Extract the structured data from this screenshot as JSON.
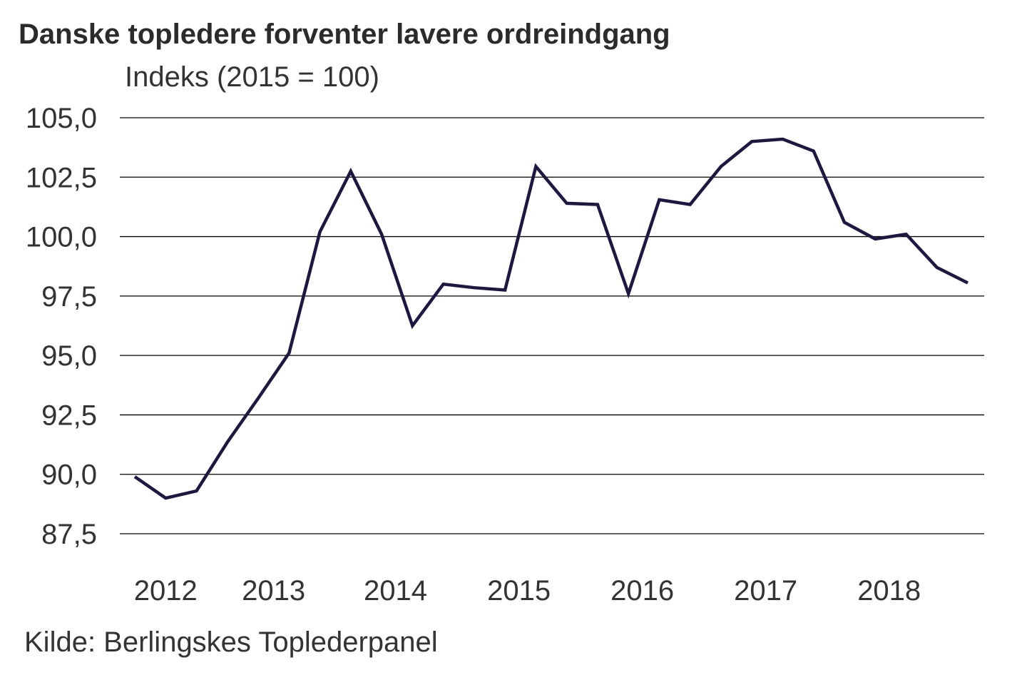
{
  "chart_data": {
    "type": "line",
    "title": "Danske topledere forventer lavere ordreindgang",
    "ylabel": "Indeks (2015 = 100)",
    "source": "Kilde: Berlingskes Toplederpanel",
    "ylim": [
      87.5,
      105.0
    ],
    "yticks": [
      "87,5",
      "90,0",
      "92,5",
      "95,0",
      "97,5",
      "100,0",
      "102,5",
      "105,0"
    ],
    "ytick_values": [
      87.5,
      90,
      92.5,
      95,
      97.5,
      100,
      102.5,
      105
    ],
    "grid": true,
    "xticks": [
      {
        "label": "2012",
        "pos": 1
      },
      {
        "label": "2013",
        "pos": 4.5
      },
      {
        "label": "2014",
        "pos": 8.45
      },
      {
        "label": "2015",
        "pos": 12.45
      },
      {
        "label": "2016",
        "pos": 16.45
      },
      {
        "label": "2017",
        "pos": 20.45
      },
      {
        "label": "2018",
        "pos": 24.45
      }
    ],
    "series": [
      {
        "name": "Indeks",
        "color": "#1c1840",
        "values": [
          89.9,
          89.0,
          89.3,
          91.35,
          93.2,
          95.1,
          100.2,
          102.75,
          100.1,
          96.25,
          98.0,
          97.85,
          97.75,
          102.95,
          101.4,
          101.35,
          97.6,
          101.55,
          101.35,
          102.95,
          104.0,
          104.1,
          103.6,
          100.6,
          99.9,
          100.1,
          98.7,
          98.05
        ]
      }
    ]
  }
}
